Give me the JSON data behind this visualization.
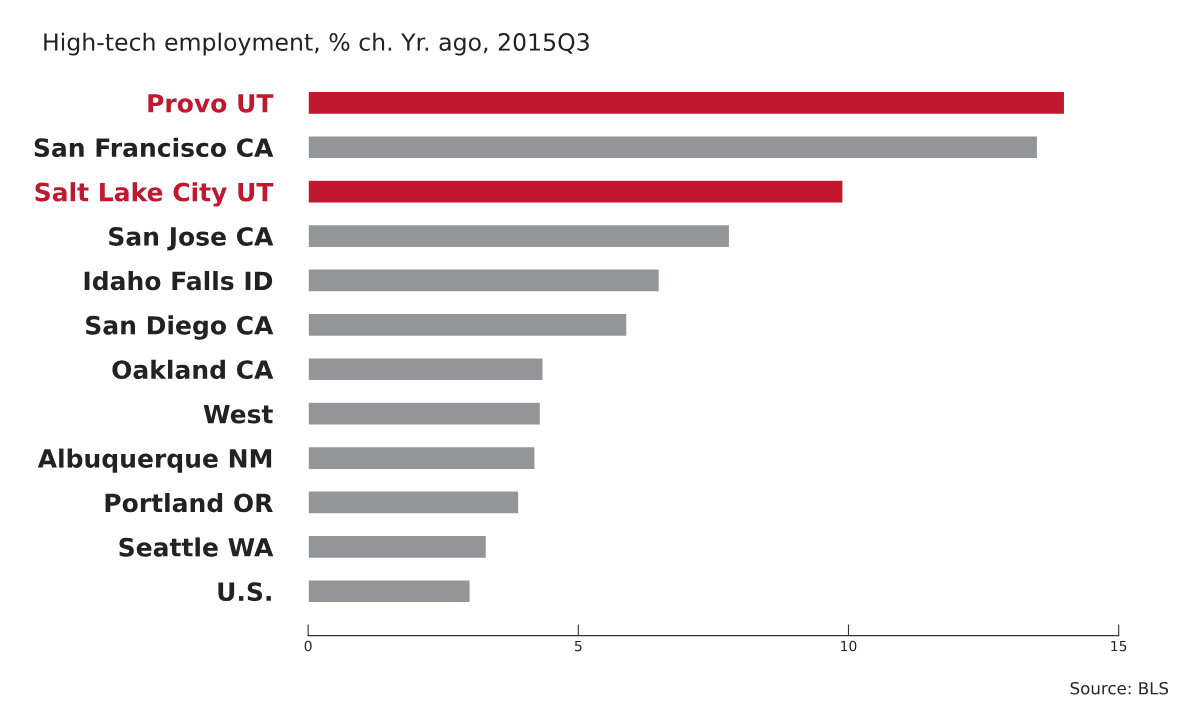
{
  "chart_data": {
    "type": "bar",
    "orientation": "horizontal",
    "title": "High-tech employment, % ch. Yr. ago, 2015Q3",
    "categories": [
      "Provo UT",
      "San Francisco CA",
      "Salt Lake City UT",
      "San Jose CA",
      "Idaho Falls ID",
      "San Diego CA",
      "Oakland CA",
      "West",
      "Albuquerque NM",
      "Portland OR",
      "Seattle WA",
      "U.S."
    ],
    "values": [
      14.0,
      13.5,
      9.9,
      7.8,
      6.5,
      5.9,
      4.35,
      4.3,
      4.2,
      3.9,
      3.3,
      3.0
    ],
    "colors": [
      "#c1172f",
      "#939598",
      "#c1172f",
      "#939598",
      "#939598",
      "#939598",
      "#939598",
      "#939598",
      "#939598",
      "#939598",
      "#939598",
      "#939598"
    ],
    "xlim": [
      0,
      15
    ],
    "xticks": [
      0,
      5,
      10,
      15
    ],
    "grid": false,
    "annotations": [
      "Source: BLS"
    ]
  }
}
